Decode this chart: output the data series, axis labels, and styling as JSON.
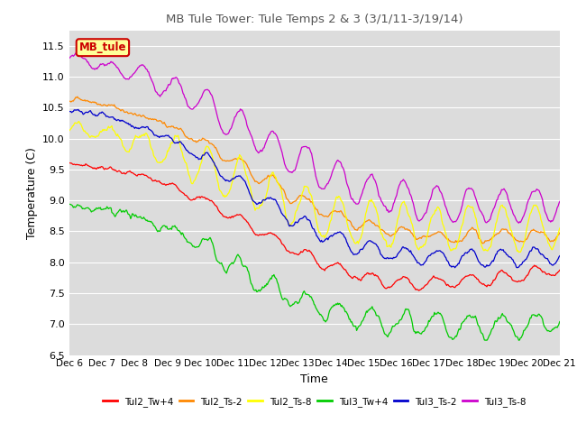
{
  "title": "MB Tule Tower: Tule Temps 2 & 3 (3/1/11-3/19/14)",
  "xlabel": "Time",
  "ylabel": "Temperature (C)",
  "ylim": [
    6.5,
    11.75
  ],
  "yticks": [
    6.5,
    7.0,
    7.5,
    8.0,
    8.5,
    9.0,
    9.5,
    10.0,
    10.5,
    11.0,
    11.5
  ],
  "bg_color": "#dcdcdc",
  "legend_label": "MB_tule",
  "legend_box_color": "#ffff99",
  "legend_box_border": "#cc0000",
  "series_colors": {
    "Tul2_Tw+4": "#ff0000",
    "Tul2_Ts-2": "#ff8800",
    "Tul2_Ts-8": "#ffff00",
    "Tul3_Tw+4": "#00cc00",
    "Tul3_Ts-2": "#0000cc",
    "Tul3_Ts-8": "#cc00cc"
  },
  "n_points": 600,
  "x_start": 0,
  "x_end": 15,
  "x_tick_labels": [
    "Dec 6",
    "Dec 7",
    "Dec 8",
    "Dec 9",
    "Dec 10",
    "Dec 11",
    "Dec 12",
    "Dec 13",
    "Dec 14",
    "Dec 15",
    "Dec 16",
    "Dec 17",
    "Dec 18",
    "Dec 19",
    "Dec 20",
    "Dec 21"
  ],
  "x_tick_positions": [
    0,
    1,
    2,
    3,
    4,
    5,
    6,
    7,
    8,
    9,
    10,
    11,
    12,
    13,
    14,
    15
  ]
}
